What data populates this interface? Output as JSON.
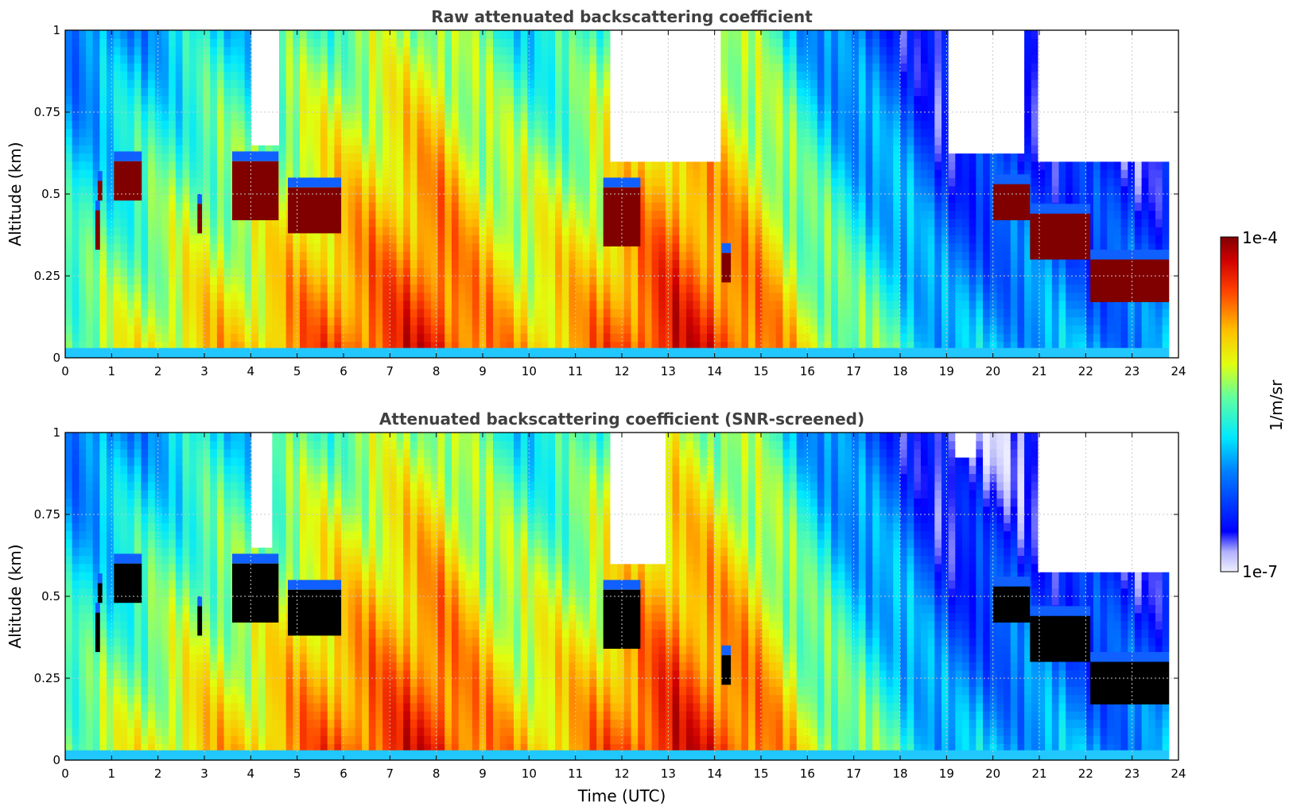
{
  "chart_data": [
    {
      "type": "heatmap",
      "title": "Raw attenuated backscattering coefficient",
      "xlabel": "",
      "ylabel": "Altitude (km)",
      "xlim": [
        0,
        24
      ],
      "ylim": [
        0,
        1
      ],
      "x_ticks": [
        "0",
        "1",
        "2",
        "3",
        "4",
        "5",
        "6",
        "7",
        "8",
        "9",
        "10",
        "11",
        "12",
        "13",
        "14",
        "15",
        "16",
        "17",
        "18",
        "19",
        "20",
        "21",
        "22",
        "23",
        "24"
      ],
      "y_ticks": [
        "0",
        "0.25",
        "0.5",
        "0.75",
        "1"
      ],
      "grid": true,
      "data_end_time": 23.8,
      "saturated_color": "#800000",
      "features": {
        "cloud_layers": [
          {
            "t0": 0.65,
            "t1": 0.75,
            "base": 0.33,
            "top": 0.45
          },
          {
            "t0": 0.7,
            "t1": 0.8,
            "base": 0.48,
            "top": 0.54
          },
          {
            "t0": 1.05,
            "t1": 1.65,
            "base": 0.48,
            "top": 0.6
          },
          {
            "t0": 2.85,
            "t1": 2.95,
            "base": 0.38,
            "top": 0.47
          },
          {
            "t0": 3.6,
            "t1": 4.6,
            "base": 0.42,
            "top": 0.6
          },
          {
            "t0": 4.8,
            "t1": 5.95,
            "base": 0.38,
            "top": 0.52
          },
          {
            "t0": 11.6,
            "t1": 12.4,
            "base": 0.34,
            "top": 0.52
          },
          {
            "t0": 14.15,
            "t1": 14.35,
            "base": 0.23,
            "top": 0.32
          },
          {
            "t0": 20.0,
            "t1": 20.8,
            "base": 0.42,
            "top": 0.53
          },
          {
            "t0": 20.8,
            "t1": 22.1,
            "base": 0.3,
            "top": 0.44
          },
          {
            "t0": 22.1,
            "t1": 23.8,
            "base": 0.17,
            "top": 0.3
          }
        ],
        "clear_sky_regions": [
          {
            "t0": 4.0,
            "t1": 4.6,
            "base": 0.65,
            "top": 1.0
          },
          {
            "t0": 11.8,
            "t1": 14.2,
            "base": 0.6,
            "top": 1.0
          },
          {
            "t0": 19.1,
            "t1": 20.7,
            "base": 0.62,
            "top": 1.0
          },
          {
            "t0": 20.9,
            "t1": 23.8,
            "base": 0.6,
            "top": 1.0
          }
        ]
      }
    },
    {
      "type": "heatmap",
      "title": "Attenuated backscattering coefficient (SNR-screened)",
      "xlabel": "Time (UTC)",
      "ylabel": "Altitude (km)",
      "xlim": [
        0,
        24
      ],
      "ylim": [
        0,
        1
      ],
      "x_ticks": [
        "0",
        "1",
        "2",
        "3",
        "4",
        "5",
        "6",
        "7",
        "8",
        "9",
        "10",
        "11",
        "12",
        "13",
        "14",
        "15",
        "16",
        "17",
        "18",
        "19",
        "20",
        "21",
        "22",
        "23",
        "24"
      ],
      "y_ticks": [
        "0",
        "0.25",
        "0.5",
        "0.75",
        "1"
      ],
      "grid": true,
      "data_end_time": 23.8,
      "saturated_color": "#000000",
      "features": {
        "cloud_layers": [
          {
            "t0": 0.65,
            "t1": 0.75,
            "base": 0.33,
            "top": 0.45
          },
          {
            "t0": 0.7,
            "t1": 0.8,
            "base": 0.48,
            "top": 0.54
          },
          {
            "t0": 1.05,
            "t1": 1.65,
            "base": 0.48,
            "top": 0.6
          },
          {
            "t0": 2.85,
            "t1": 2.95,
            "base": 0.38,
            "top": 0.47
          },
          {
            "t0": 3.6,
            "t1": 4.6,
            "base": 0.42,
            "top": 0.6
          },
          {
            "t0": 4.8,
            "t1": 5.95,
            "base": 0.38,
            "top": 0.52
          },
          {
            "t0": 11.6,
            "t1": 12.4,
            "base": 0.34,
            "top": 0.52
          },
          {
            "t0": 14.15,
            "t1": 14.35,
            "base": 0.23,
            "top": 0.32
          },
          {
            "t0": 20.0,
            "t1": 20.8,
            "base": 0.42,
            "top": 0.53
          },
          {
            "t0": 20.8,
            "t1": 22.1,
            "base": 0.3,
            "top": 0.44
          },
          {
            "t0": 22.1,
            "t1": 23.8,
            "base": 0.17,
            "top": 0.3
          }
        ],
        "clear_sky_regions": [
          {
            "t0": 4.0,
            "t1": 4.5,
            "base": 0.65,
            "top": 1.0
          },
          {
            "t0": 11.8,
            "t1": 13.0,
            "base": 0.6,
            "top": 1.0
          },
          {
            "t0": 19.2,
            "t1": 19.6,
            "base": 0.92,
            "top": 1.0
          },
          {
            "t0": 20.9,
            "t1": 23.8,
            "base": 0.58,
            "top": 1.0
          }
        ]
      }
    }
  ],
  "colorbar": {
    "label": "1/m/sr",
    "max_label": "1e-4",
    "min_label": "1e-7",
    "scale": "log",
    "colormap": "jet",
    "range": [
      1e-07,
      0.0001
    ]
  }
}
